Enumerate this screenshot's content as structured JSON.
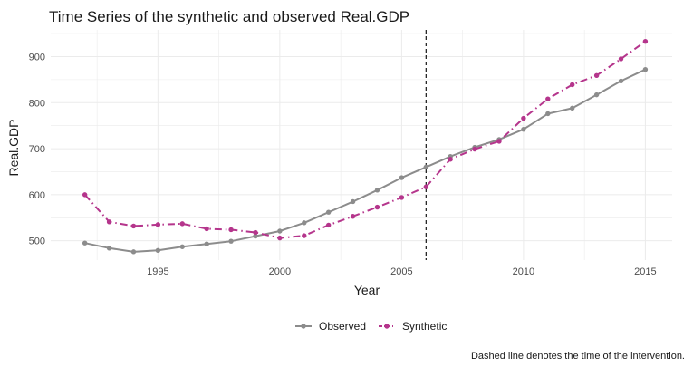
{
  "chart_data": {
    "type": "line",
    "title": "Time Series of the synthetic and observed Real.GDP",
    "xlabel": "Year",
    "ylabel": "Real.GDP",
    "caption": "Dashed line denotes the time of the intervention.",
    "x": [
      1992,
      1993,
      1994,
      1995,
      1996,
      1997,
      1998,
      1999,
      2000,
      2001,
      2002,
      2003,
      2004,
      2005,
      2006,
      2007,
      2008,
      2009,
      2010,
      2011,
      2012,
      2013,
      2014,
      2015
    ],
    "xlim": [
      1990.6,
      2016.1
    ],
    "ylim": [
      458,
      958
    ],
    "x_ticks": [
      1995,
      2000,
      2005,
      2010,
      2015
    ],
    "x_tick_labels": [
      "1995",
      "2000",
      "2005",
      "2010",
      "2015"
    ],
    "y_ticks": [
      500,
      600,
      700,
      800,
      900
    ],
    "y_tick_labels": [
      "500",
      "600",
      "700",
      "800",
      "900"
    ],
    "intervention_x": 2006,
    "grid": true,
    "legend_position": "bottom",
    "series": [
      {
        "name": "Observed",
        "color": "#8c8c8c",
        "line_style": "solid",
        "values": [
          495,
          484,
          476,
          479,
          487,
          493,
          499,
          510,
          521,
          539,
          562,
          585,
          610,
          637,
          660,
          683,
          703,
          720,
          742,
          776,
          788,
          817,
          847,
          872
        ]
      },
      {
        "name": "Synthetic",
        "color": "#b5358c",
        "line_style": "dashdot",
        "values": [
          600,
          541,
          532,
          535,
          537,
          526,
          524,
          518,
          506,
          511,
          534,
          553,
          573,
          594,
          617,
          677,
          699,
          716,
          766,
          808,
          839,
          859,
          895,
          933
        ]
      }
    ]
  }
}
